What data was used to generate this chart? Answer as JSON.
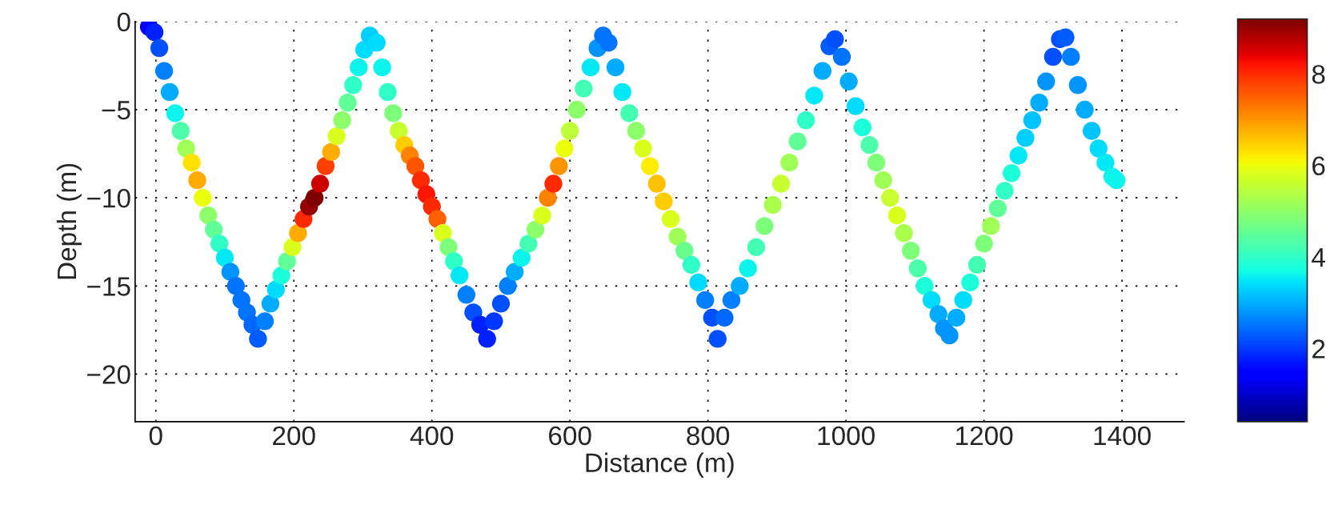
{
  "chart_data": {
    "type": "scatter",
    "xlabel": "Distance (m)",
    "ylabel": "Depth (m)",
    "x": [
      -10,
      -2,
      5,
      12,
      20,
      28,
      36,
      44,
      52,
      60,
      68,
      76,
      84,
      92,
      100,
      108,
      116,
      124,
      132,
      140,
      148,
      158,
      166,
      174,
      182,
      190,
      198,
      206,
      214,
      222,
      230,
      238,
      246,
      254,
      262,
      270,
      278,
      286,
      294,
      302,
      310,
      320,
      328,
      336,
      344,
      352,
      360,
      368,
      376,
      384,
      392,
      400,
      408,
      416,
      424,
      432,
      440,
      450,
      460,
      470,
      480,
      490,
      500,
      510,
      520,
      530,
      540,
      550,
      560,
      568,
      576,
      584,
      592,
      600,
      610,
      620,
      630,
      640,
      648,
      656,
      666,
      676,
      686,
      696,
      706,
      716,
      726,
      736,
      746,
      756,
      766,
      776,
      786,
      796,
      806,
      814,
      824,
      834,
      846,
      858,
      870,
      882,
      894,
      906,
      918,
      930,
      942,
      954,
      966,
      976,
      984,
      994,
      1004,
      1014,
      1024,
      1034,
      1044,
      1054,
      1064,
      1074,
      1084,
      1094,
      1104,
      1114,
      1124,
      1134,
      1142,
      1150,
      1160,
      1170,
      1180,
      1190,
      1200,
      1210,
      1220,
      1230,
      1240,
      1250,
      1260,
      1270,
      1280,
      1290,
      1300,
      1310,
      1318,
      1326,
      1336,
      1346,
      1356,
      1366,
      1376,
      1386,
      1392
    ],
    "values": [
      -0.3,
      -0.6,
      -1.5,
      -2.8,
      -4.0,
      -5.2,
      -6.2,
      -7.2,
      -8.0,
      -9.0,
      -10.0,
      -11.0,
      -11.8,
      -12.6,
      -13.4,
      -14.2,
      -15.0,
      -15.8,
      -16.5,
      -17.2,
      -18.0,
      -17.0,
      -16.0,
      -15.2,
      -14.4,
      -13.6,
      -12.8,
      -12.0,
      -11.2,
      -10.5,
      -10.0,
      -9.2,
      -8.2,
      -7.4,
      -6.5,
      -5.6,
      -4.6,
      -3.6,
      -2.6,
      -1.6,
      -0.8,
      -1.2,
      -2.6,
      -4.0,
      -5.2,
      -6.2,
      -7.0,
      -7.6,
      -8.2,
      -9.0,
      -9.8,
      -10.5,
      -11.2,
      -12.0,
      -12.8,
      -13.6,
      -14.4,
      -15.5,
      -16.5,
      -17.2,
      -18.0,
      -17.0,
      -16.0,
      -15.0,
      -14.2,
      -13.4,
      -12.6,
      -11.8,
      -11.0,
      -10.0,
      -9.2,
      -8.2,
      -7.2,
      -6.2,
      -5.0,
      -3.8,
      -2.6,
      -1.5,
      -0.8,
      -1.2,
      -2.6,
      -4.0,
      -5.2,
      -6.2,
      -7.2,
      -8.2,
      -9.2,
      -10.2,
      -11.2,
      -12.2,
      -13.0,
      -13.8,
      -14.8,
      -15.8,
      -16.8,
      -18.0,
      -16.8,
      -15.8,
      -15.0,
      -14.0,
      -12.8,
      -11.6,
      -10.4,
      -9.2,
      -8.0,
      -6.8,
      -5.6,
      -4.2,
      -2.8,
      -1.4,
      -1.0,
      -2.0,
      -3.4,
      -4.8,
      -6.0,
      -7.0,
      -8.0,
      -9.0,
      -10.0,
      -11.0,
      -12.0,
      -13.0,
      -14.0,
      -15.0,
      -15.8,
      -16.6,
      -17.4,
      -17.8,
      -16.8,
      -15.8,
      -14.8,
      -13.8,
      -12.6,
      -11.6,
      -10.6,
      -9.6,
      -8.6,
      -7.6,
      -6.6,
      -5.6,
      -4.6,
      -3.4,
      -2.0,
      -1.0,
      -0.9,
      -2.0,
      -3.6,
      -5.0,
      -6.2,
      -7.2,
      -8.0,
      -8.8,
      -9.0
    ],
    "cvalues": [
      1.5,
      1.8,
      2.2,
      2.6,
      3,
      3.6,
      4.3,
      5.2,
      6.3,
      6.8,
      6,
      5,
      4.5,
      4,
      3.5,
      2.8,
      2.5,
      2.5,
      2.5,
      2.4,
      2.3,
      2.6,
      3,
      3.4,
      3.8,
      4.5,
      5.8,
      6.8,
      8,
      9,
      9.2,
      8.6,
      7.8,
      6.8,
      5.8,
      5,
      4.5,
      4,
      3.6,
      3.4,
      3.3,
      3.4,
      3.6,
      4,
      4.8,
      5.6,
      6.5,
      7.2,
      7.6,
      8,
      8.2,
      8,
      7.5,
      5.8,
      4.8,
      4,
      3.5,
      2.6,
      2.2,
      1.8,
      1.8,
      2,
      2.2,
      2.6,
      3,
      3.6,
      4.2,
      5,
      5.8,
      7.2,
      8,
      7,
      6,
      5.5,
      5,
      4.2,
      3.5,
      2.8,
      2.5,
      2.5,
      3,
      3.5,
      4.2,
      5,
      5.8,
      6.2,
      6.6,
      6.5,
      5.8,
      5.2,
      4.6,
      4,
      3.4,
      2.6,
      2.2,
      2.2,
      2.4,
      2.6,
      3,
      3.6,
      4.2,
      4.8,
      5.3,
      5.6,
      5.2,
      4.5,
      4,
      3.5,
      3,
      2.3,
      2.2,
      2.5,
      3,
      3.4,
      3.8,
      4.3,
      4.8,
      5.2,
      5.6,
      5.8,
      5.3,
      4.8,
      4.3,
      3.8,
      3.4,
      3,
      2.8,
      2.8,
      3,
      3.4,
      3.8,
      4.2,
      4.8,
      5.2,
      4.5,
      4,
      3.8,
      3.5,
      3.3,
      3.2,
      3,
      2.8,
      2.2,
      2.2,
      2.3,
      2.6,
      2.8,
      3,
      3.2,
      3.4,
      3.5,
      3.6,
      3.6
    ],
    "xlim": [
      -30,
      1490
    ],
    "ylim": [
      -22.7,
      0
    ],
    "xticks": [
      0,
      200,
      400,
      600,
      800,
      1000,
      1200,
      1400
    ],
    "yticks": [
      {
        "value": -20,
        "label": "−20"
      },
      {
        "value": -15,
        "label": "−15"
      },
      {
        "value": -10,
        "label": "−10"
      },
      {
        "value": -5,
        "label": "−5"
      },
      0
    ],
    "clim": [
      0.4,
      9.2
    ],
    "cticks": [
      2,
      4,
      6,
      8
    ],
    "grid": true,
    "marker": "circle"
  }
}
